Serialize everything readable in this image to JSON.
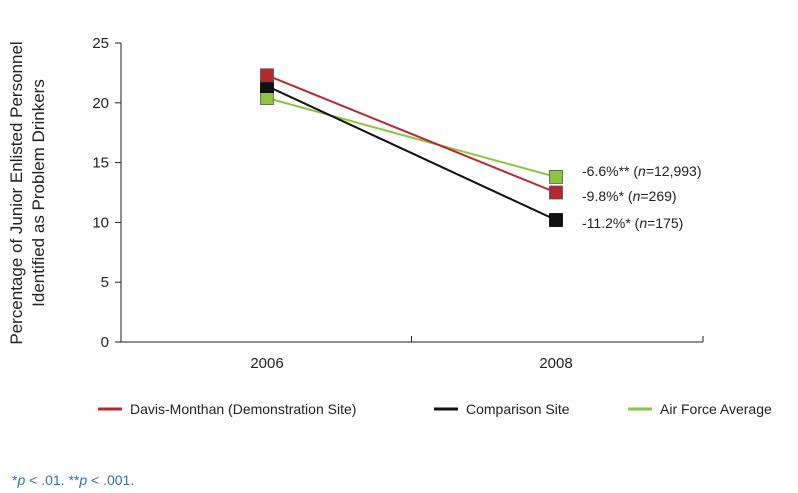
{
  "chart_data": {
    "type": "line",
    "x": [
      "2006",
      "2008"
    ],
    "ylabel_lines": [
      "Percentage of Junior Enlisted Personnel",
      "Identified as Problem Drinkers"
    ],
    "ylim": [
      0,
      25
    ],
    "yticks": [
      0,
      5,
      10,
      15,
      20,
      25
    ],
    "grid": false,
    "legend_placement": "bottom",
    "series": [
      {
        "name": "Davis-Monthan (Demonstration Site)",
        "color": "#b7282e",
        "values": [
          22.3,
          12.5
        ],
        "annotation": {
          "prefix": "-9.8%* (",
          "n": "n",
          "suffix": "=269)"
        }
      },
      {
        "name": "Comparison Site",
        "color": "#111111",
        "values": [
          21.4,
          10.2
        ],
        "annotation": {
          "prefix": "-11.2%* (",
          "n": "n",
          "suffix": "=175)"
        }
      },
      {
        "name": "Air Force Average",
        "color": "#8cc63f",
        "values": [
          20.4,
          13.8
        ],
        "annotation": {
          "prefix": "-6.6%** (",
          "n": "n",
          "suffix": "=12,993)"
        }
      }
    ]
  },
  "footnote": {
    "p1": "p",
    "t1": " < .01. **",
    "p2": "p",
    "t2": " < .001.",
    "lead": "*"
  }
}
